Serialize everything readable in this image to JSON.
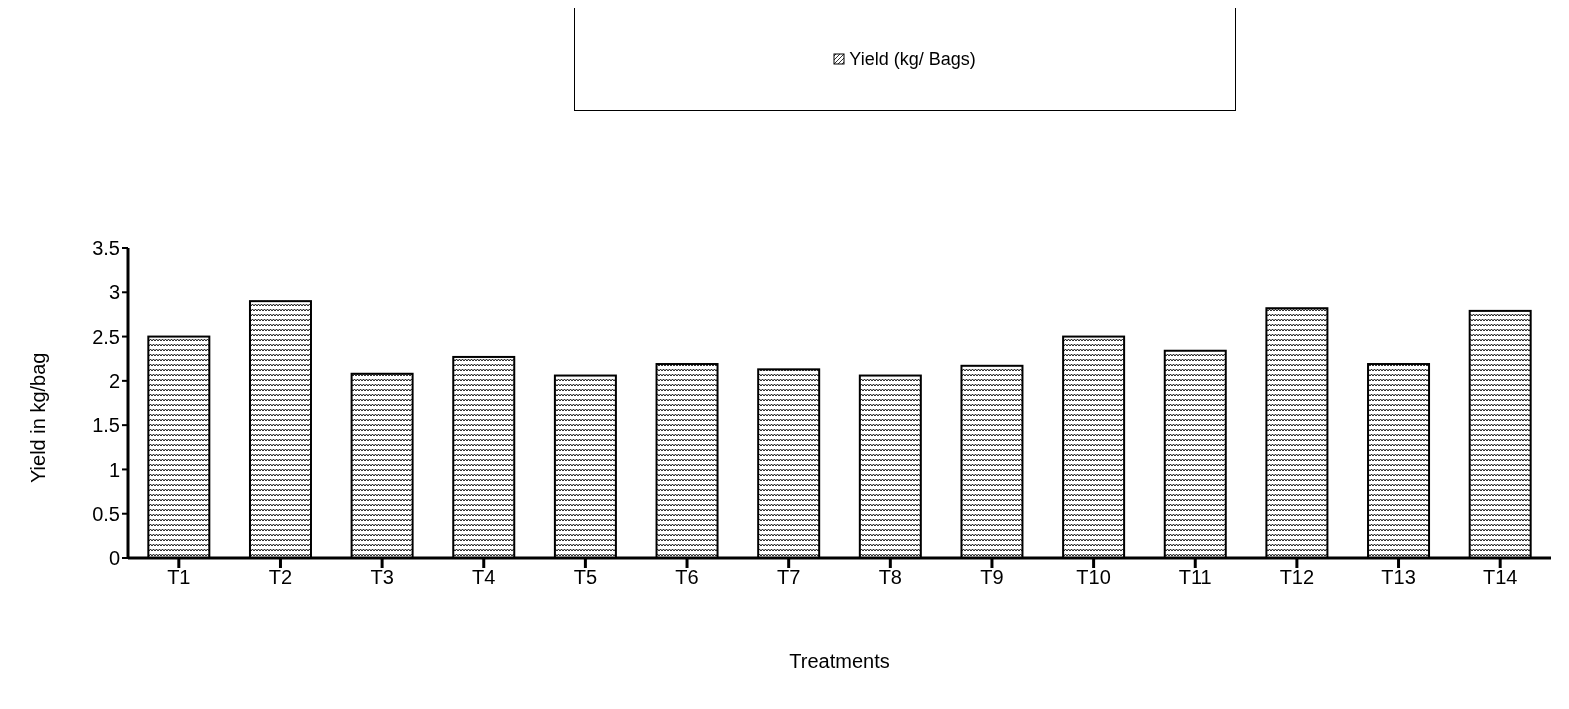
{
  "chart_data": {
    "type": "bar",
    "xlabel": "Treatments",
    "ylabel": "Yield in kg/bag",
    "categories": [
      "T1",
      "T2",
      "T3",
      "T4",
      "T5",
      "T6",
      "T7",
      "T8",
      "T9",
      "T10",
      "T11",
      "T12",
      "T13",
      "T14"
    ],
    "series": [
      {
        "name": "Yield (kg/ Bags)",
        "color": "#000000",
        "values": [
          2.5,
          2.9,
          2.08,
          2.27,
          2.06,
          2.19,
          2.13,
          2.06,
          2.17,
          2.5,
          2.34,
          2.82,
          2.19,
          2.79
        ]
      }
    ],
    "ylim": [
      0,
      3.5
    ],
    "yticks": [
      0,
      0.5,
      1,
      1.5,
      2,
      2.5,
      3,
      3.5
    ],
    "grid": false,
    "legend": "top"
  }
}
